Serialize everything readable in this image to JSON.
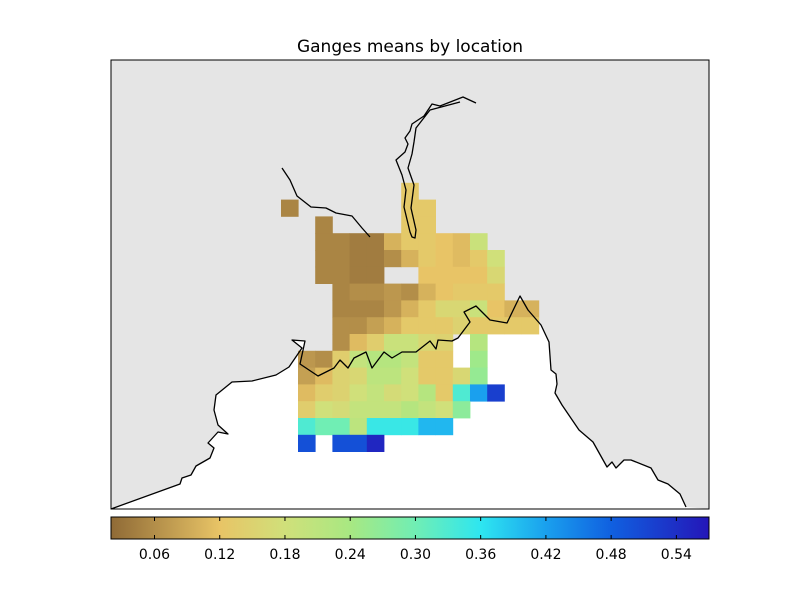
{
  "chart_data": {
    "type": "heatmap",
    "title": "Ganges means by location",
    "xlabel": "",
    "ylabel": "",
    "grid": false,
    "colors": {
      "ocean_background": "#e5e5e5",
      "land_outside_region": "#ffffff",
      "coastline": "#000000"
    },
    "colorbar": {
      "orientation": "horizontal",
      "placement": "bottom",
      "range": [
        0.02,
        0.57
      ],
      "ticks": [
        "0.06",
        "0.12",
        "0.18",
        "0.24",
        "0.30",
        "0.36",
        "0.42",
        "0.48",
        "0.54"
      ],
      "colormap": [
        [
          0.02,
          "#8f6a36"
        ],
        [
          0.12,
          "#e8c466"
        ],
        [
          0.18,
          "#d0e07a"
        ],
        [
          0.24,
          "#a8e882"
        ],
        [
          0.3,
          "#70eeb4"
        ],
        [
          0.36,
          "#2ee6f0"
        ],
        [
          0.42,
          "#1aa0ee"
        ],
        [
          0.48,
          "#1060e0"
        ],
        [
          0.57,
          "#2416b8"
        ]
      ]
    },
    "rows": [
      [
        null,
        null,
        null,
        null,
        null,
        null,
        null,
        null,
        null,
        null,
        null,
        null,
        null,
        null
      ],
      [
        null,
        null,
        null,
        null,
        null,
        null,
        0.13,
        null,
        null,
        null,
        null,
        null,
        null,
        null
      ],
      [
        0.05,
        null,
        null,
        null,
        null,
        null,
        0.13,
        0.13,
        null,
        null,
        null,
        null,
        null,
        null
      ],
      [
        null,
        0.05,
        null,
        null,
        null,
        null,
        0.13,
        0.13,
        null,
        null,
        null,
        null,
        null,
        null
      ],
      [
        null,
        0.05,
        0.05,
        0.04,
        0.04,
        0.1,
        0.13,
        0.13,
        0.12,
        0.11,
        0.19,
        null,
        null,
        null
      ],
      [
        null,
        0.05,
        0.05,
        0.04,
        0.04,
        0.06,
        0.1,
        0.13,
        0.12,
        0.11,
        0.13,
        0.18,
        null,
        null
      ],
      [
        null,
        0.05,
        0.05,
        0.04,
        0.04,
        null,
        null,
        0.12,
        0.12,
        0.12,
        0.12,
        0.16,
        null,
        null
      ],
      [
        null,
        null,
        0.05,
        0.06,
        0.06,
        0.07,
        0.06,
        0.1,
        0.12,
        0.13,
        0.13,
        0.13,
        null,
        null
      ],
      [
        null,
        null,
        0.05,
        0.05,
        0.05,
        0.07,
        0.1,
        0.13,
        0.16,
        0.16,
        0.19,
        0.12,
        0.1,
        0.1
      ],
      [
        null,
        null,
        0.06,
        0.06,
        0.08,
        0.1,
        0.13,
        0.13,
        0.13,
        0.15,
        0.13,
        0.13,
        0.13,
        0.13
      ],
      [
        null,
        null,
        0.06,
        0.11,
        0.14,
        0.19,
        0.19,
        0.16,
        0.15,
        null,
        0.22,
        null,
        null,
        null
      ],
      [
        0.07,
        0.06,
        0.14,
        0.2,
        0.22,
        0.22,
        0.2,
        0.13,
        0.13,
        null,
        0.25,
        null,
        null,
        null
      ],
      [
        0.08,
        0.11,
        0.15,
        0.16,
        0.21,
        0.21,
        0.18,
        0.13,
        0.13,
        0.16,
        0.26,
        null,
        null,
        null
      ],
      [
        0.11,
        0.14,
        0.15,
        0.18,
        0.2,
        0.17,
        0.18,
        0.22,
        0.13,
        0.33,
        0.42,
        0.52,
        null,
        null
      ],
      [
        0.14,
        0.18,
        0.17,
        0.2,
        0.2,
        0.2,
        0.22,
        0.2,
        0.18,
        0.27,
        null,
        null,
        null,
        null
      ],
      [
        0.33,
        0.3,
        0.3,
        0.21,
        0.35,
        0.35,
        0.35,
        0.4,
        0.4,
        null,
        null,
        null,
        null,
        null
      ],
      [
        0.5,
        null,
        0.5,
        0.5,
        0.55,
        null,
        null,
        null,
        null,
        null,
        null,
        null,
        null,
        null
      ]
    ]
  }
}
